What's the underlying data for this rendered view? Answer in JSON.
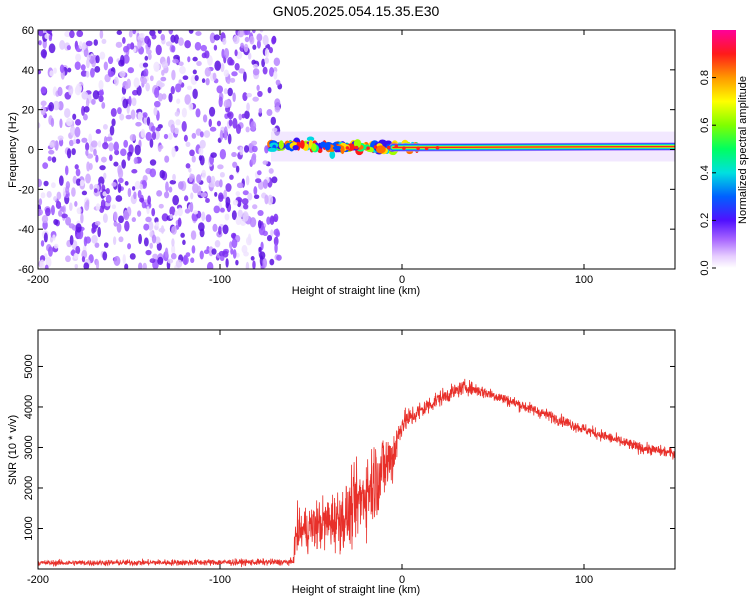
{
  "title": "GN05.2025.054.15.35.E30",
  "colors": {
    "snr_line": "#e8302a",
    "background_noise": "#7a2cf0",
    "signal_core": "#ff2020"
  },
  "chart_data": [
    {
      "type": "heatmap",
      "name": "spectrogram",
      "xlabel": "Height of straight line (km)",
      "ylabel": "Frequency (Hz)",
      "xlim": [
        -200,
        150
      ],
      "ylim": [
        -60,
        60
      ],
      "xticks": [
        -200,
        -100,
        0,
        100
      ],
      "yticks": [
        -60,
        -40,
        -20,
        0,
        20,
        40,
        60
      ],
      "colorbar": {
        "label": "Normalized spectral amplitude",
        "range": [
          0.0,
          1.0
        ],
        "ticks": [
          "0.0",
          "0.2",
          "0.4",
          "0.6",
          "0.8"
        ],
        "colormap": "rainbow-magenta"
      },
      "regions": [
        {
          "x": [
            -200,
            -67
          ],
          "description_value": "broadband noise, amplitude ~0.1-0.3 across all frequencies"
        },
        {
          "x": [
            -72,
            10
          ],
          "center_hz": 2,
          "width_hz": 10,
          "amplitude": "0.3-1.0 blobs"
        },
        {
          "x": [
            10,
            150
          ],
          "center_hz": 1,
          "width_hz": 5,
          "amplitude": "~1.0 core"
        }
      ]
    },
    {
      "type": "line",
      "name": "snr",
      "xlabel": "Height of straight line (km)",
      "ylabel": "SNR (10 * v/v)",
      "xlim": [
        -200,
        150
      ],
      "ylim": [
        0,
        5900
      ],
      "xticks": [
        -200,
        -100,
        0,
        100
      ],
      "yticks": [
        1000,
        2000,
        3000,
        4000,
        5000
      ],
      "envelope": {
        "x": [
          -200,
          -60,
          -58,
          -45,
          -30,
          -15,
          -5,
          0,
          20,
          35,
          50,
          80,
          100,
          130,
          150
        ],
        "mean": [
          150,
          170,
          900,
          1100,
          1300,
          2200,
          2800,
          3600,
          4200,
          4500,
          4300,
          3800,
          3450,
          3000,
          2850
        ],
        "spread": [
          120,
          140,
          900,
          1100,
          1400,
          1800,
          1200,
          500,
          350,
          300,
          260,
          240,
          240,
          240,
          220
        ]
      }
    }
  ]
}
